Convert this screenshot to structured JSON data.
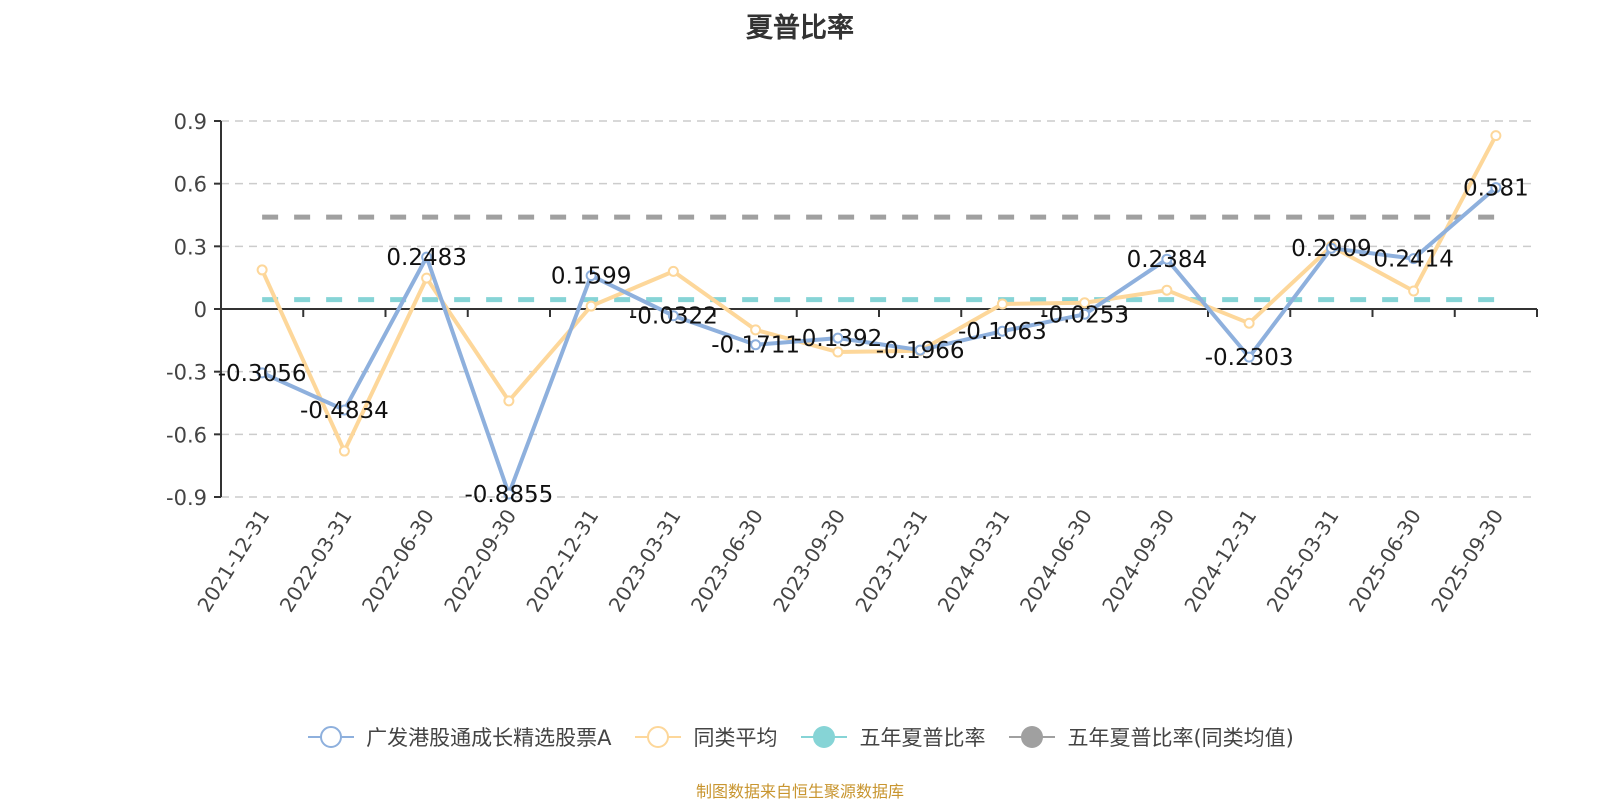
{
  "chart_data": {
    "type": "line",
    "title": "夏普比率",
    "xlabel": "",
    "ylabel": "",
    "ylim": [
      -0.9,
      0.9
    ],
    "yticks": [
      "0.9",
      "0.6",
      "0.3",
      "0",
      "-0.3",
      "-0.6",
      "-0.9"
    ],
    "ytick_values": [
      0.9,
      0.6,
      0.3,
      0,
      -0.3,
      -0.6,
      -0.9
    ],
    "grid": true,
    "legend_position": "bottom",
    "categories": [
      "2021-12-31",
      "2022-03-31",
      "2022-06-30",
      "2022-09-30",
      "2022-12-31",
      "2023-03-31",
      "2023-06-30",
      "2023-09-30",
      "2023-12-31",
      "2024-03-31",
      "2024-06-30",
      "2024-09-30",
      "2024-12-31",
      "2025-03-31",
      "2025-06-30",
      "2025-09-30"
    ],
    "series": [
      {
        "name": "广发港股通成长精选股票A",
        "color": "#8eb0dd",
        "values": [
          -0.3056,
          -0.4834,
          0.2483,
          -0.8855,
          0.1599,
          -0.0322,
          -0.1711,
          -0.1392,
          -0.1966,
          -0.1063,
          -0.0253,
          0.2384,
          -0.2303,
          0.2909,
          0.2414,
          0.581
        ],
        "labels": [
          "-0.3056",
          "-0.4834",
          "0.2483",
          "-0.8855",
          "0.1599",
          "-0.0322",
          "-0.1711",
          "-0.1392",
          "-0.1966",
          "-0.1063",
          "-0.0253",
          "0.2384",
          "-0.2303",
          "0.2909",
          "0.2414",
          "0.581"
        ]
      },
      {
        "name": "同类平均",
        "color": "#fdd79a",
        "values": [
          0.187,
          -0.68,
          0.148,
          -0.44,
          0.014,
          0.18,
          -0.1,
          -0.206,
          -0.2,
          0.024,
          0.03,
          0.09,
          -0.068,
          0.3,
          0.086,
          0.83
        ]
      },
      {
        "name": "五年夏普比率",
        "color": "#86d4d6",
        "dashed": true,
        "constant": 0.045
      },
      {
        "name": "五年夏普比率(同类均值)",
        "color": "#a0a0a0",
        "dashed": true,
        "constant": 0.44
      }
    ]
  },
  "legend": {
    "items": [
      {
        "label": "广发港股通成长精选股票A",
        "color": "#8eb0dd",
        "marker": "hollow-circle"
      },
      {
        "label": "同类平均",
        "color": "#fdd79a",
        "marker": "hollow-circle"
      },
      {
        "label": "五年夏普比率",
        "color": "#86d4d6",
        "marker": "filled-circle"
      },
      {
        "label": "五年夏普比率(同类均值)",
        "color": "#a0a0a0",
        "marker": "filled-circle"
      }
    ]
  },
  "footer": {
    "source": "制图数据来自恒生聚源数据库"
  }
}
